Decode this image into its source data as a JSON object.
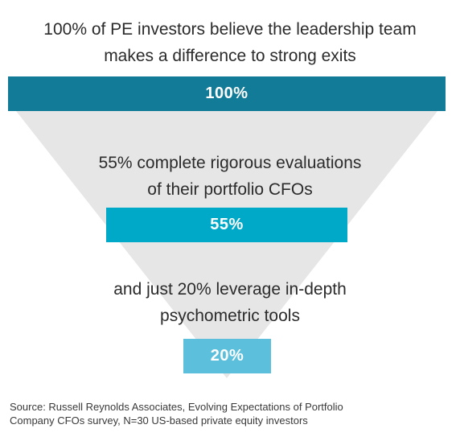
{
  "chart_data": {
    "type": "funnel",
    "stages": [
      {
        "caption_lines": [
          "100% of PE investors believe the leadership team",
          "makes a difference to strong exits"
        ],
        "value": 100,
        "label": "100%",
        "color": "#127b98"
      },
      {
        "caption_lines": [
          "55% complete rigorous evaluations",
          "of their portfolio CFOs"
        ],
        "value": 55,
        "label": "55%",
        "color": "#00a9c8"
      },
      {
        "caption_lines": [
          "and just 20% leverage in-depth",
          "psychometric tools"
        ],
        "value": 20,
        "label": "20%",
        "color": "#5cc0dd"
      }
    ],
    "funnel_color": "#e6e6e6"
  },
  "source_lines": [
    "Source: Russell Reynolds Associates, Evolving Expectations of Portfolio",
    "Company CFOs survey, N=30 US-based private equity investors"
  ]
}
